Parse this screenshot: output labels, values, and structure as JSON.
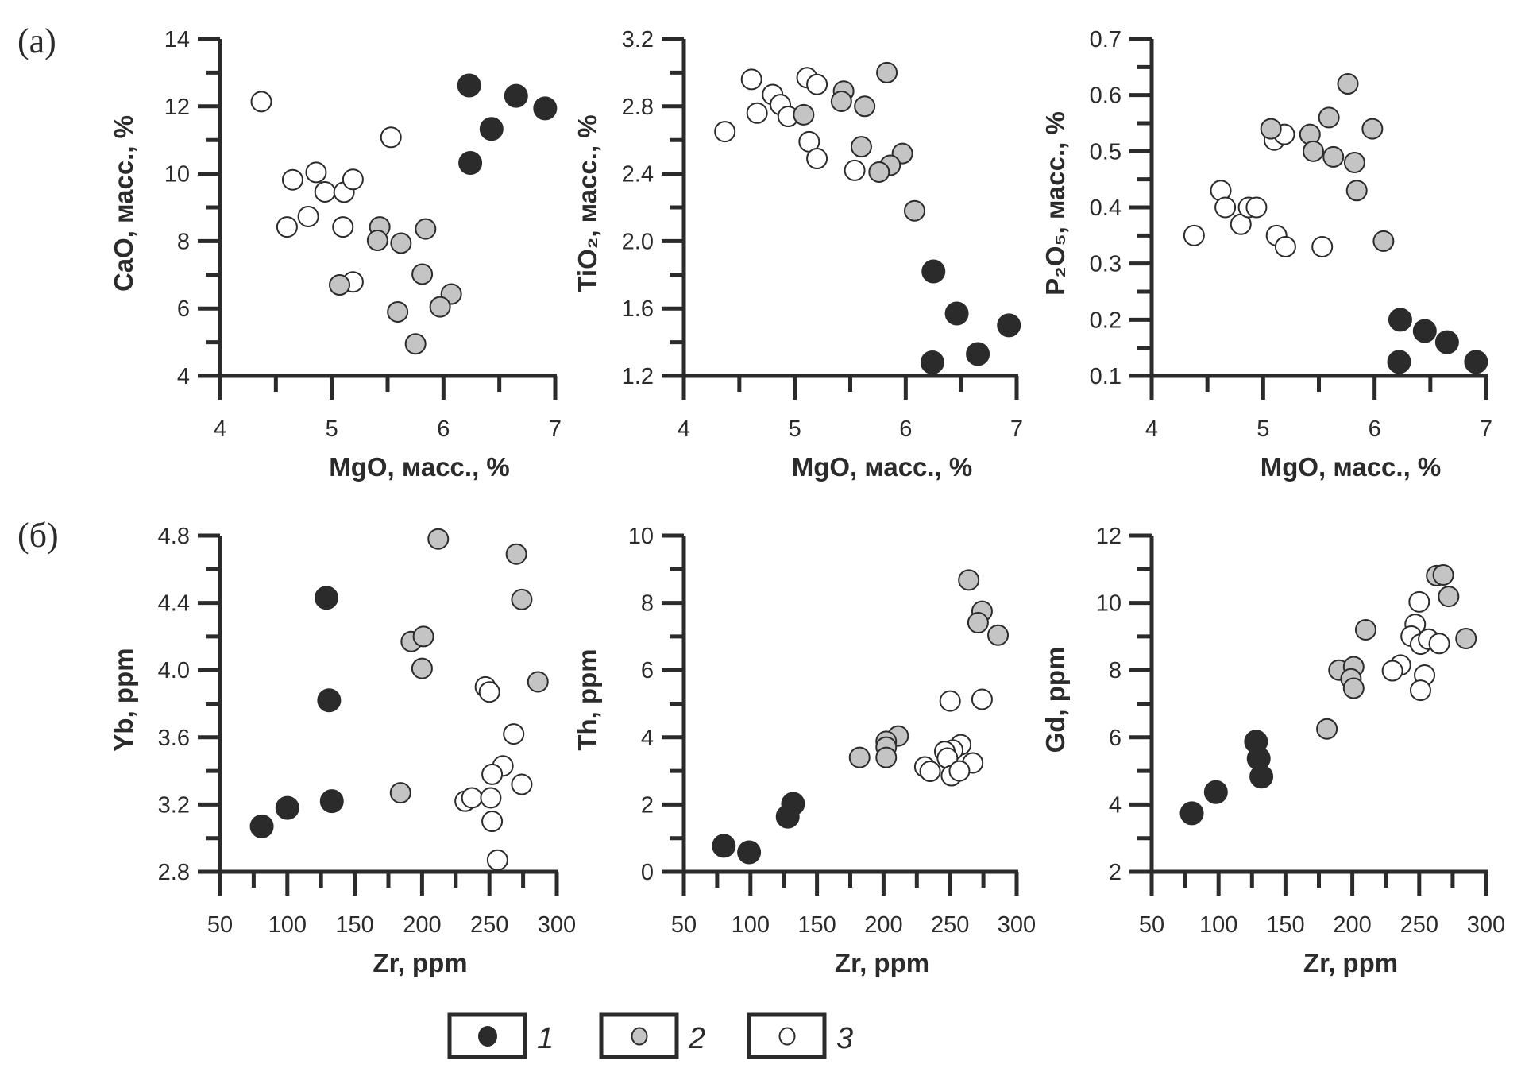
{
  "panel_labels": [
    "(a)",
    "(б)"
  ],
  "legend": [
    {
      "label": "1",
      "style": "black"
    },
    {
      "label": "2",
      "style": "gray"
    },
    {
      "label": "3",
      "style": "open"
    }
  ],
  "colors": {
    "black": "#2b2b2b",
    "gray": "#c4c4c4",
    "open": "#ffffff",
    "stroke": "#2b2b2b"
  },
  "chart_data": [
    {
      "type": "scatter",
      "xlabel": "MgO, масс., %",
      "ylabel": "CaO, масс., %",
      "xlim": [
        4,
        7
      ],
      "ylim": [
        4,
        14
      ],
      "xticks": [
        4,
        5,
        6,
        7
      ],
      "xminor": 0.5,
      "yticks": [
        4,
        6,
        8,
        10,
        12,
        14
      ],
      "yminor": 1,
      "xticklabels": [
        "4",
        "5",
        "6",
        "7"
      ],
      "yticklabels": [
        "4",
        "6",
        "8",
        "10",
        "12",
        "14"
      ],
      "series": [
        {
          "name": "1",
          "style": "black",
          "points": [
            [
              6.23,
              12.62
            ],
            [
              6.65,
              12.31
            ],
            [
              6.91,
              11.94
            ],
            [
              6.43,
              11.33
            ],
            [
              6.24,
              10.32
            ]
          ]
        },
        {
          "name": "2",
          "style": "gray",
          "points": [
            [
              5.43,
              8.42
            ],
            [
              5.41,
              8.02
            ],
            [
              5.62,
              7.94
            ],
            [
              5.84,
              8.36
            ],
            [
              5.81,
              7.02
            ],
            [
              6.07,
              6.43
            ],
            [
              5.97,
              6.05
            ],
            [
              5.59,
              5.9
            ],
            [
              5.75,
              4.95
            ],
            [
              5.07,
              6.7
            ]
          ]
        },
        {
          "name": "3",
          "style": "open",
          "points": [
            [
              4.37,
              12.14
            ],
            [
              5.53,
              11.08
            ],
            [
              4.65,
              9.82
            ],
            [
              4.86,
              10.04
            ],
            [
              4.94,
              9.46
            ],
            [
              5.11,
              9.45
            ],
            [
              5.19,
              9.83
            ],
            [
              4.79,
              8.73
            ],
            [
              4.6,
              8.42
            ],
            [
              5.1,
              8.42
            ],
            [
              5.19,
              6.79
            ]
          ]
        }
      ]
    },
    {
      "type": "scatter",
      "xlabel": "MgO, масс., %",
      "ylabel": "TiO₂, масс., %",
      "xlim": [
        4,
        7
      ],
      "ylim": [
        1.2,
        3.2
      ],
      "xticks": [
        4,
        5,
        6,
        7
      ],
      "xminor": 0.5,
      "yticks": [
        1.2,
        1.6,
        2.0,
        2.4,
        2.8,
        3.2
      ],
      "yminor": 0.2,
      "xticklabels": [
        "4",
        "5",
        "6",
        "7"
      ],
      "yticklabels": [
        "1.2",
        "1.6",
        "2.0",
        "2.4",
        "2.8",
        "3.2"
      ],
      "series": [
        {
          "name": "1",
          "style": "black",
          "points": [
            [
              6.25,
              1.82
            ],
            [
              6.46,
              1.57
            ],
            [
              6.93,
              1.5
            ],
            [
              6.65,
              1.33
            ],
            [
              6.24,
              1.28
            ]
          ]
        },
        {
          "name": "2",
          "style": "gray",
          "points": [
            [
              5.08,
              2.75
            ],
            [
              5.44,
              2.89
            ],
            [
              5.42,
              2.83
            ],
            [
              5.83,
              3.0
            ],
            [
              5.63,
              2.8
            ],
            [
              5.6,
              2.56
            ],
            [
              5.97,
              2.52
            ],
            [
              5.86,
              2.45
            ],
            [
              5.76,
              2.41
            ],
            [
              6.08,
              2.18
            ]
          ]
        },
        {
          "name": "3",
          "style": "open",
          "points": [
            [
              4.61,
              2.96
            ],
            [
              4.37,
              2.65
            ],
            [
              4.66,
              2.76
            ],
            [
              4.8,
              2.87
            ],
            [
              4.87,
              2.81
            ],
            [
              4.94,
              2.74
            ],
            [
              5.11,
              2.97
            ],
            [
              5.2,
              2.93
            ],
            [
              5.13,
              2.59
            ],
            [
              5.2,
              2.49
            ],
            [
              5.54,
              2.42
            ]
          ]
        }
      ]
    },
    {
      "type": "scatter",
      "xlabel": "MgO, масс., %",
      "ylabel": "P₂O₅, масс., %",
      "xlim": [
        4,
        7
      ],
      "ylim": [
        0.1,
        0.7
      ],
      "xticks": [
        4,
        5,
        6,
        7
      ],
      "xminor": 0.5,
      "yticks": [
        0.1,
        0.2,
        0.3,
        0.4,
        0.5,
        0.6,
        0.7
      ],
      "yminor": 0.05,
      "xticklabels": [
        "4",
        "5",
        "6",
        "7"
      ],
      "yticklabels": [
        "0.1",
        "0.2",
        "0.3",
        "0.4",
        "0.5",
        "0.6",
        "0.7"
      ],
      "series": [
        {
          "name": "1",
          "style": "black",
          "points": [
            [
              6.23,
              0.2
            ],
            [
              6.45,
              0.18
            ],
            [
              6.65,
              0.16
            ],
            [
              6.91,
              0.125
            ],
            [
              6.22,
              0.125
            ]
          ]
        },
        {
          "name": "2",
          "style": "gray",
          "points": [
            [
              5.07,
              0.54
            ],
            [
              5.42,
              0.53
            ],
            [
              5.59,
              0.56
            ],
            [
              5.76,
              0.62
            ],
            [
              5.98,
              0.54
            ],
            [
              5.45,
              0.5
            ],
            [
              5.63,
              0.49
            ],
            [
              5.82,
              0.48
            ],
            [
              5.84,
              0.43
            ],
            [
              6.08,
              0.34
            ]
          ]
        },
        {
          "name": "3",
          "style": "open",
          "points": [
            [
              4.38,
              0.35
            ],
            [
              4.62,
              0.43
            ],
            [
              4.66,
              0.4
            ],
            [
              4.8,
              0.37
            ],
            [
              4.87,
              0.4
            ],
            [
              4.94,
              0.4
            ],
            [
              5.1,
              0.52
            ],
            [
              5.19,
              0.53
            ],
            [
              5.12,
              0.35
            ],
            [
              5.2,
              0.33
            ],
            [
              5.53,
              0.33
            ]
          ]
        }
      ]
    },
    {
      "type": "scatter",
      "xlabel": "Zr, ppm",
      "ylabel": "Yb, ppm",
      "xlim": [
        50,
        300
      ],
      "ylim": [
        2.8,
        4.8
      ],
      "xticks": [
        50,
        100,
        150,
        200,
        250,
        300
      ],
      "xminor": 25,
      "yticks": [
        2.8,
        3.2,
        3.6,
        4.0,
        4.4,
        4.8
      ],
      "yminor": 0.2,
      "xticklabels": [
        "50",
        "100",
        "150",
        "200",
        "250",
        "300"
      ],
      "yticklabels": [
        "2.8",
        "3.2",
        "3.6",
        "4.0",
        "4.4",
        "4.8"
      ],
      "series": [
        {
          "name": "1",
          "style": "black",
          "points": [
            [
              81,
              3.07
            ],
            [
              100,
              3.18
            ],
            [
              133,
              3.22
            ],
            [
              131,
              3.82
            ],
            [
              129,
              4.43
            ]
          ]
        },
        {
          "name": "2",
          "style": "gray",
          "points": [
            [
              212,
              4.78
            ],
            [
              270,
              4.69
            ],
            [
              274,
              4.42
            ],
            [
              192,
              4.17
            ],
            [
              201,
              4.2
            ],
            [
              200,
              4.01
            ],
            [
              286,
              3.93
            ],
            [
              184,
              3.27
            ]
          ]
        },
        {
          "name": "3",
          "style": "open",
          "points": [
            [
              247,
              3.9
            ],
            [
              250,
              3.87
            ],
            [
              268,
              3.62
            ],
            [
              260,
              3.43
            ],
            [
              252,
              3.38
            ],
            [
              274,
              3.32
            ],
            [
              232,
              3.22
            ],
            [
              237,
              3.24
            ],
            [
              251,
              3.24
            ],
            [
              252,
              3.1
            ],
            [
              256,
              2.87
            ]
          ]
        }
      ]
    },
    {
      "type": "scatter",
      "xlabel": "Zr, ppm",
      "ylabel": "Th, ppm",
      "xlim": [
        50,
        300
      ],
      "ylim": [
        0,
        10
      ],
      "xticks": [
        50,
        100,
        150,
        200,
        250,
        300
      ],
      "xminor": 25,
      "yticks": [
        0,
        2,
        4,
        6,
        8,
        10
      ],
      "yminor": 1,
      "xticklabels": [
        "50",
        "100",
        "150",
        "200",
        "250",
        "300"
      ],
      "yticklabels": [
        "0",
        "2",
        "4",
        "6",
        "8",
        "10"
      ],
      "series": [
        {
          "name": "1",
          "style": "black",
          "points": [
            [
              80,
              0.77
            ],
            [
              99,
              0.58
            ],
            [
              132,
              2.02
            ],
            [
              128,
              1.64
            ]
          ]
        },
        {
          "name": "2",
          "style": "gray",
          "points": [
            [
              264,
              8.68
            ],
            [
              274,
              7.75
            ],
            [
              271,
              7.41
            ],
            [
              286,
              7.04
            ],
            [
              182,
              3.4
            ],
            [
              211,
              4.04
            ],
            [
              202,
              3.88
            ],
            [
              202,
              3.71
            ],
            [
              202,
              3.4
            ]
          ]
        },
        {
          "name": "3",
          "style": "open",
          "points": [
            [
              250,
              5.08
            ],
            [
              274,
              5.13
            ],
            [
              258,
              3.78
            ],
            [
              252,
              3.62
            ],
            [
              246,
              3.58
            ],
            [
              248,
              3.38
            ],
            [
              231,
              3.12
            ],
            [
              235,
              2.99
            ],
            [
              267,
              3.24
            ],
            [
              251,
              2.86
            ],
            [
              257,
              3.0
            ]
          ]
        }
      ]
    },
    {
      "type": "scatter",
      "xlabel": "Zr, ppm",
      "ylabel": "Gd, ppm",
      "xlim": [
        50,
        300
      ],
      "ylim": [
        2,
        12
      ],
      "xticks": [
        50,
        100,
        150,
        200,
        250,
        300
      ],
      "xminor": 25,
      "yticks": [
        2,
        4,
        6,
        8,
        10,
        12
      ],
      "yminor": 1,
      "xticklabels": [
        "50",
        "100",
        "150",
        "200",
        "250",
        "300"
      ],
      "yticklabels": [
        "2",
        "4",
        "6",
        "8",
        "10",
        "12"
      ],
      "series": [
        {
          "name": "1",
          "style": "black",
          "points": [
            [
              80,
              3.74
            ],
            [
              98,
              4.37
            ],
            [
              128,
              5.87
            ],
            [
              130,
              5.37
            ],
            [
              132,
              4.83
            ]
          ]
        },
        {
          "name": "2",
          "style": "gray",
          "points": [
            [
              181,
              6.25
            ],
            [
              210,
              9.2
            ],
            [
              190,
              8.0
            ],
            [
              201,
              8.1
            ],
            [
              199,
              7.74
            ],
            [
              201,
              7.46
            ],
            [
              263,
              10.81
            ],
            [
              268,
              10.83
            ],
            [
              272,
              10.19
            ],
            [
              285,
              8.94
            ]
          ]
        },
        {
          "name": "3",
          "style": "open",
          "points": [
            [
              250,
              10.03
            ],
            [
              247,
              9.36
            ],
            [
              244,
              9.01
            ],
            [
              251,
              8.77
            ],
            [
              257,
              8.92
            ],
            [
              265,
              8.79
            ],
            [
              236,
              8.15
            ],
            [
              230,
              7.98
            ],
            [
              254,
              7.85
            ],
            [
              251,
              7.4
            ]
          ]
        }
      ]
    }
  ]
}
